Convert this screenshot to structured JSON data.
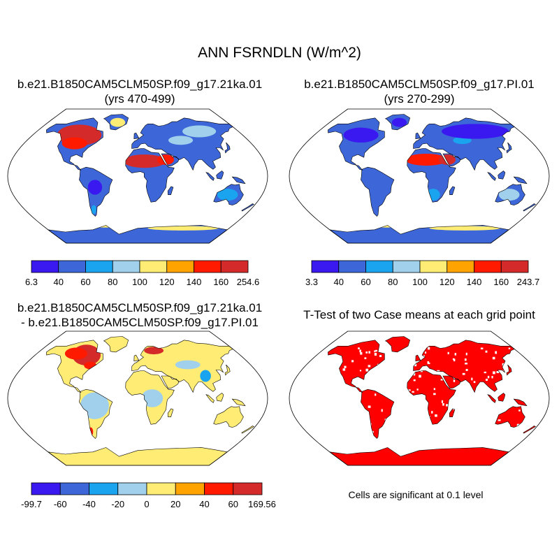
{
  "title": "ANN FSRNDLN (W/m^2)",
  "panels": [
    {
      "line1": "b.e21.B1850CAM5CLM50SP.f09_g17.21ka.01",
      "line2": "(yrs 470-499)"
    },
    {
      "line1": "b.e21.B1850CAM5CLM50SP.f09_g17.PI.01",
      "line2": "(yrs 270-299)"
    },
    {
      "line1": "b.e21.B1850CAM5CLM50SP.f09_g17.21ka.01",
      "line2": "- b.e21.B1850CAM5CLM50SP.f09_g17.PI.01"
    },
    {
      "line1": "T-Test of two Case means at each grid point",
      "line2": ""
    }
  ],
  "significance_note": "Cells are significant at 0.1 level",
  "colorbars": [
    {
      "labels": [
        "6.3",
        "40",
        "60",
        "80",
        "100",
        "120",
        "140",
        "160",
        "254.6"
      ],
      "colors": [
        "#3a19f0",
        "#3d67d8",
        "#1aa4f0",
        "#a0d0ec",
        "#ffec74",
        "#ffa300",
        "#ff1a00",
        "#d42a2a"
      ]
    },
    {
      "labels": [
        "3.3",
        "40",
        "60",
        "80",
        "100",
        "120",
        "140",
        "160",
        "243.7"
      ],
      "colors": [
        "#3a19f0",
        "#3d67d8",
        "#1aa4f0",
        "#a0d0ec",
        "#ffec74",
        "#ffa300",
        "#ff1a00",
        "#d42a2a"
      ]
    },
    {
      "labels": [
        "-99.7",
        "-60",
        "-40",
        "-20",
        "0",
        "20",
        "40",
        "60",
        "169.56"
      ],
      "colors": [
        "#3a19f0",
        "#3d67d8",
        "#1aa4f0",
        "#a0d0ec",
        "#ffec74",
        "#ffa300",
        "#ff1a00",
        "#d42a2a"
      ]
    }
  ],
  "map_colors": {
    "ocean": "#ffffff",
    "outline": "#000000",
    "panel1_land": "#3d67d8",
    "panel2_land": "#3d67d8",
    "panel3_land": "#ffec74",
    "panel4_land": "#ff0000"
  }
}
